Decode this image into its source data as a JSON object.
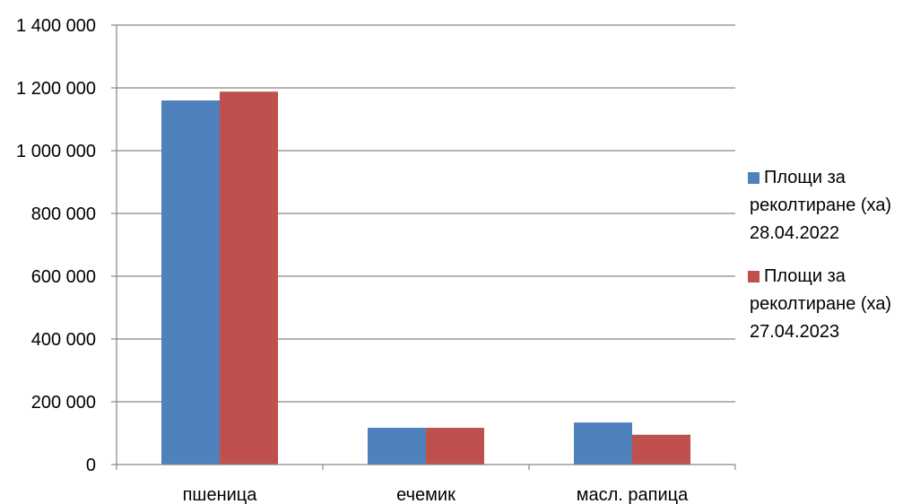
{
  "chart_data": {
    "type": "bar",
    "categories": [
      "пшеница",
      "ечемик",
      "масл. рапица"
    ],
    "series": [
      {
        "name": "Площи за реколтиране (ха) 28.04.2022",
        "legend_lines": [
          "Площи за",
          "реколтиране (ха)",
          "28.04.2022"
        ],
        "values": [
          1160000,
          117000,
          134000
        ],
        "color": "#4F81BD"
      },
      {
        "name": "Площи за реколтиране (ха) 27.04.2023",
        "legend_lines": [
          "Площи за",
          "реколтиране (ха)",
          "27.04.2023"
        ],
        "values": [
          1188000,
          117000,
          95000
        ],
        "color": "#C0504D"
      }
    ],
    "yticks": [
      "0",
      "200 000",
      "400 000",
      "600 000",
      "800 000",
      "1 000 000",
      "1 200 000",
      "1 400 000"
    ],
    "ylim": [
      0,
      1400000
    ],
    "grid": true,
    "legend_position": "right"
  }
}
